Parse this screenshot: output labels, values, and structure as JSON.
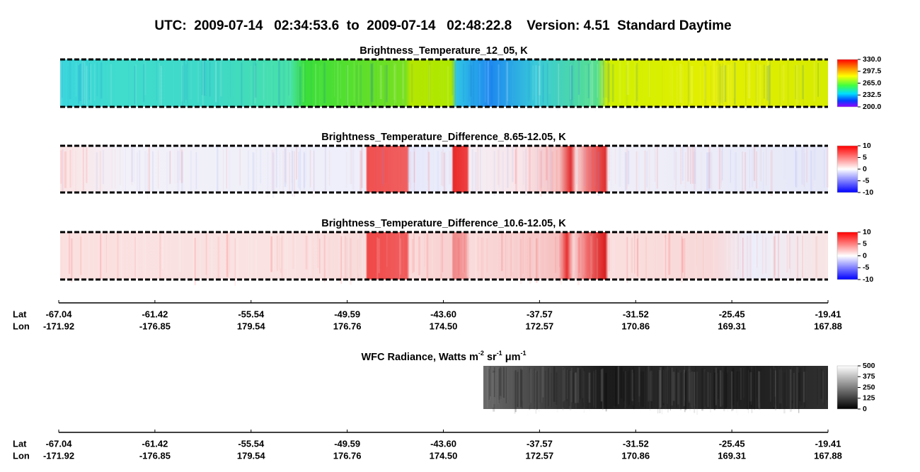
{
  "title": "UTC:  2009-07-14   02:34:53.6  to  2009-07-14   02:48:22.8    Version: 4.51  Standard Daytime",
  "panels": [
    {
      "title": "Brightness_Temperature_12_05, K",
      "colorbar_labels": [
        "330.0",
        "297.5",
        "265.0",
        "232.5",
        "200.0"
      ]
    },
    {
      "title": "Brightness_Temperature_Difference_8.65-12.05, K",
      "colorbar_labels": [
        "10",
        "5",
        "0",
        "-5",
        "-10"
      ]
    },
    {
      "title": "Brightness_Temperature_Difference_10.6-12.05, K",
      "colorbar_labels": [
        "10",
        "5",
        "0",
        "-5",
        "-10"
      ]
    },
    {
      "title": [
        "WFC Radiance, Watts m",
        "-2",
        " sr",
        "-1",
        " μm",
        "-1"
      ],
      "colorbar_labels": [
        "500",
        "375",
        "250",
        "125",
        "0"
      ]
    }
  ],
  "axes": [
    {
      "row_labels": [
        "Lat",
        "Lon"
      ],
      "lat": [
        "-67.04",
        "-61.42",
        "-55.54",
        "-49.59",
        "-43.60",
        "-37.57",
        "-31.52",
        "-25.45",
        "-19.41"
      ],
      "lon": [
        "-171.92",
        "-176.85",
        "179.54",
        "176.76",
        "174.50",
        "172.57",
        "170.86",
        "169.31",
        "167.88"
      ]
    },
    {
      "row_labels": [
        "Lat",
        "Lon"
      ],
      "lat": [
        "-67.04",
        "-61.42",
        "-55.54",
        "-49.59",
        "-43.60",
        "-37.57",
        "-31.52",
        "-25.45",
        "-19.41"
      ],
      "lon": [
        "-171.92",
        "-176.85",
        "179.54",
        "176.76",
        "174.50",
        "172.57",
        "170.86",
        "169.31",
        "167.88"
      ]
    }
  ]
}
